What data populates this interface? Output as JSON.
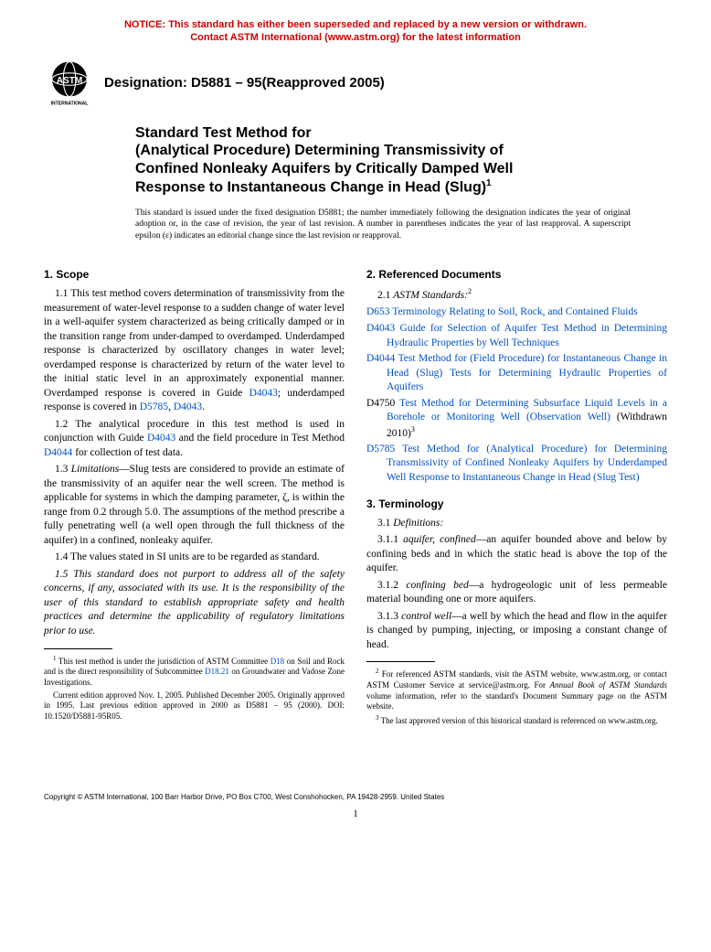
{
  "notice": {
    "line1": "NOTICE: This standard has either been superseded and replaced by a new version or withdrawn.",
    "line2": "Contact ASTM International (www.astm.org) for the latest information"
  },
  "designation": "Designation: D5881 – 95(Reapproved 2005)",
  "title": {
    "line1": "Standard Test Method for",
    "line2a": "(Analytical Procedure) Determining Transmissivity of",
    "line2b": "Confined Nonleaky Aquifers by Critically Damped Well",
    "line2c": "Response to Instantaneous Change in Head (Slug)",
    "sup": "1"
  },
  "adoption": "This standard is issued under the fixed designation D5881; the number immediately following the designation indicates the year of original adoption or, in the case of revision, the year of last revision. A number in parentheses indicates the year of last reapproval. A superscript epsilon (ε) indicates an editorial change since the last revision or reapproval.",
  "sec1": {
    "head": "1. Scope",
    "p1a": "1.1 This test method covers determination of transmissivity from the measurement of water-level response to a sudden change of water level in a well-aquifer system characterized as being critically damped or in the transition range from under-damped to overdamped. Underdamped response is characterized by oscillatory changes in water level; overdamped response is characterized by return of the water level to the initial static level in an approximately exponential manner. Overdamped response is covered in Guide ",
    "p1b": "; underdamped response is covered in ",
    "p1c": ", ",
    "p1d": ".",
    "link1": "D4043",
    "link2": "D5785",
    "link3": "D4043",
    "p2a": "1.2 The analytical procedure in this test method is used in conjunction with Guide ",
    "p2b": " and the field procedure in Test Method ",
    "p2c": " for collection of test data.",
    "link4": "D4043",
    "link5": "D4044",
    "p3": "1.3 Limitations—Slug tests are considered to provide an estimate of the transmissivity of an aquifer near the well screen. The method is applicable for systems in which the damping parameter, ζ, is within the range from 0.2 through 5.0. The assumptions of the method prescribe a fully penetrating well (a well open through the full thickness of the aquifer) in a confined, nonleaky aquifer.",
    "p4": "1.4 The values stated in SI units are to be regarded as standard.",
    "p5": "1.5 This standard does not purport to address all of the safety concerns, if any, associated with its use. It is the responsibility of the user of this standard to establish appropriate safety and health practices and determine the applicability of regulatory limitations prior to use."
  },
  "fn_left": {
    "f1a": "This test method is under the jurisdiction of ASTM Committee ",
    "f1b": " on Soil and Rock and is the direct responsibility of Subcommittee ",
    "f1c": " on Groundwater and Vadose Zone Investigations.",
    "link1": "D18",
    "link2": "D18.21",
    "f2": "Current edition approved Nov. 1, 2005. Published December 2005. Originally approved in 1995. Last previous edition approved in 2000 as D5881 – 95 (2000). DOI: 10.1520/D5881-95R05."
  },
  "sec2": {
    "head": "2. Referenced Documents",
    "p1": "2.1 ASTM Standards:",
    "sup": "2",
    "refs": [
      {
        "code": "D653",
        "text": "Terminology Relating to Soil, Rock, and Contained Fluids",
        "tail": ""
      },
      {
        "code": "D4043",
        "text": "Guide for Selection of Aquifer Test Method in Determining Hydraulic Properties by Well Techniques",
        "tail": ""
      },
      {
        "code": "D4044",
        "text": "Test Method for (Field Procedure) for Instantaneous Change in Head (Slug) Tests for Determining Hydraulic Properties of Aquifers",
        "tail": ""
      },
      {
        "code": "D4750",
        "text": "Test Method for Determining Subsurface Liquid Levels in a Borehole or Monitoring Well (Observation Well)",
        "tail": " (Withdrawn 2010)",
        "sup": "3",
        "black_code": true
      },
      {
        "code": "D5785",
        "text": "Test Method for (Analytical Procedure) for Determining Transmissivity of Confined Nonleaky Aquifers by Underdamped Well Response to Instantaneous Change in Head (Slug Test)",
        "tail": ""
      }
    ]
  },
  "sec3": {
    "head": "3. Terminology",
    "p1": "3.1 Definitions:",
    "d1": "3.1.1 aquifer, confined—an aquifer bounded above and below by confining beds and in which the static head is above the top of the aquifer.",
    "d2": "3.1.2 confining bed—a hydrogeologic unit of less permeable material bounding one or more aquifers.",
    "d3": "3.1.3 control well—a well by which the head and flow in the aquifer is changed by pumping, injecting, or imposing a constant change of head."
  },
  "fn_right": {
    "f2": "For referenced ASTM standards, visit the ASTM website, www.astm.org, or contact ASTM Customer Service at service@astm.org. For Annual Book of ASTM Standards volume information, refer to the standard's Document Summary page on the ASTM website.",
    "f3": "The last approved version of this historical standard is referenced on www.astm.org."
  },
  "copyright": "Copyright © ASTM International, 100 Barr Harbor Drive, PO Box C700, West Conshohocken, PA 19428-2959. United States",
  "pagenum": "1",
  "logo_label": "INTERNATIONAL"
}
